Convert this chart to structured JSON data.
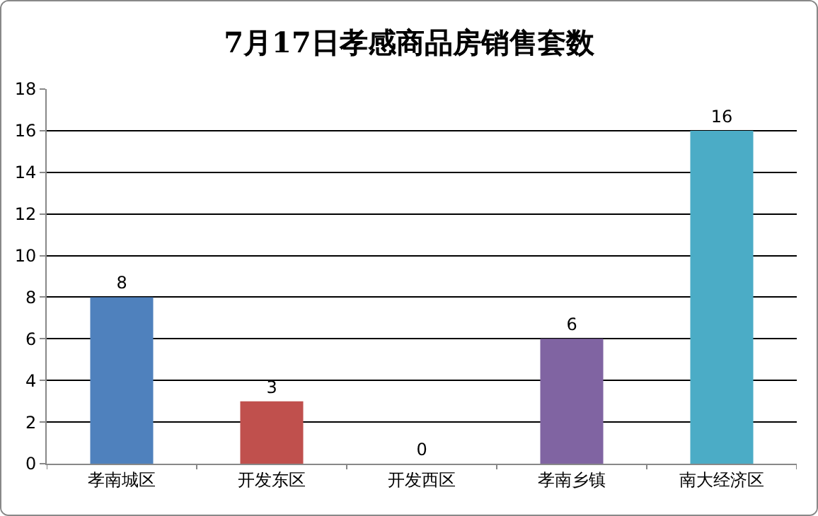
{
  "chart_data": {
    "type": "bar",
    "title": "7月17日孝感商品房销售套数",
    "categories": [
      "孝南城区",
      "开发东区",
      "开发西区",
      "孝南乡镇",
      "南大经济区"
    ],
    "values": [
      8,
      3,
      0,
      6,
      16
    ],
    "colors": [
      "#4f81bd",
      "#c0504d",
      "#9bbb59",
      "#8064a2",
      "#4bacc6"
    ],
    "ylim": [
      0,
      18
    ],
    "yticks": [
      0,
      2,
      4,
      6,
      8,
      10,
      12,
      14,
      16,
      18
    ],
    "grid": "y",
    "data_labels": true
  }
}
